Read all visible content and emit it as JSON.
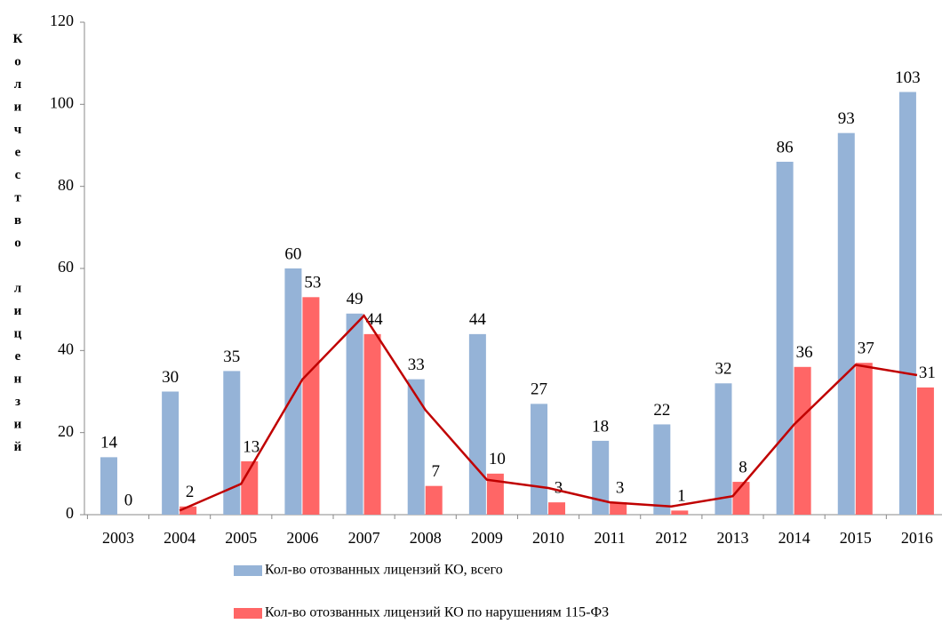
{
  "chart_data": {
    "type": "bar",
    "y_axis_label": "Количество лицензий",
    "categories": [
      "2003",
      "2004",
      "2005",
      "2006",
      "2007",
      "2008",
      "2009",
      "2010",
      "2011",
      "2012",
      "2013",
      "2014",
      "2015",
      "2016"
    ],
    "series": [
      {
        "name": "Кол-во отозванных лицензий  КО, всего",
        "color": "#95b3d7",
        "values": [
          14,
          30,
          35,
          60,
          49,
          33,
          44,
          27,
          18,
          22,
          32,
          86,
          93,
          103
        ]
      },
      {
        "name": "Кол-во отозванных лицензий  КО по нарушениям  115-ФЗ",
        "color": "#ff6666",
        "values": [
          0,
          2,
          13,
          53,
          44,
          7,
          10,
          3,
          3,
          1,
          8,
          36,
          37,
          31
        ]
      }
    ],
    "trend": {
      "color": "#c00000",
      "values": [
        null,
        1,
        7.5,
        33,
        48.5,
        25.5,
        8.5,
        6.5,
        3,
        2,
        4.5,
        22,
        36.5,
        34
      ]
    },
    "ylim": [
      0,
      120
    ],
    "yticks": [
      0,
      20,
      40,
      60,
      80,
      100,
      120
    ]
  }
}
